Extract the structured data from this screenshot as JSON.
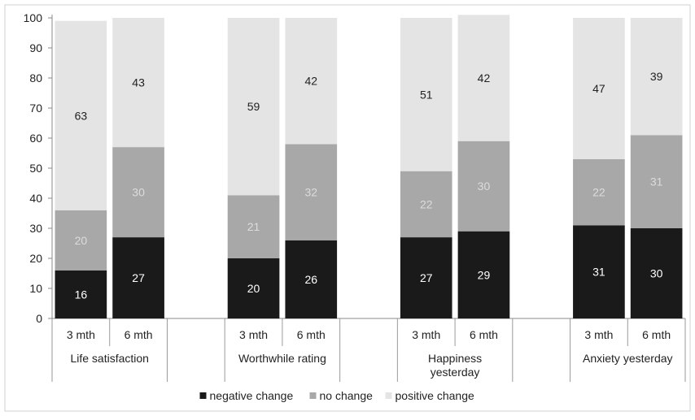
{
  "chart_data": {
    "type": "bar",
    "stacked": true,
    "ylim": [
      0,
      100
    ],
    "yticks": [
      0,
      10,
      20,
      30,
      40,
      50,
      60,
      70,
      80,
      90,
      100
    ],
    "grid": false,
    "legend_position": "bottom",
    "groups": [
      {
        "label": "Life satisfaction"
      },
      {
        "label": ""
      },
      {
        "label": "Worthwhile rating"
      },
      {
        "label": ""
      },
      {
        "label": "Happiness yesterday"
      },
      {
        "label": ""
      },
      {
        "label": "Anxiety yesterday"
      }
    ],
    "categories": [
      {
        "label": "3 mth",
        "group": 0
      },
      {
        "label": "6 mth",
        "group": 0
      },
      {
        "label": "",
        "group": 1
      },
      {
        "label": "3 mth",
        "group": 2
      },
      {
        "label": "6 mth",
        "group": 2
      },
      {
        "label": "",
        "group": 3
      },
      {
        "label": "3 mth",
        "group": 4
      },
      {
        "label": "6 mth",
        "group": 4
      },
      {
        "label": "",
        "group": 5
      },
      {
        "label": "3 mth",
        "group": 6
      },
      {
        "label": "6 mth",
        "group": 6
      }
    ],
    "series": [
      {
        "name": "negative change",
        "color": "#1a1a1a",
        "label_color": "#ffffff",
        "values": [
          16,
          27,
          null,
          20,
          26,
          null,
          27,
          29,
          null,
          31,
          30
        ]
      },
      {
        "name": "no change",
        "color": "#a8a8a8",
        "label_color": "#dcdcdc",
        "values": [
          20,
          30,
          null,
          21,
          32,
          null,
          22,
          30,
          null,
          22,
          31
        ]
      },
      {
        "name": "positive change",
        "color": "#e4e4e4",
        "label_color": "#222222",
        "values": [
          63,
          43,
          null,
          59,
          42,
          null,
          51,
          42,
          null,
          47,
          39
        ]
      }
    ]
  }
}
